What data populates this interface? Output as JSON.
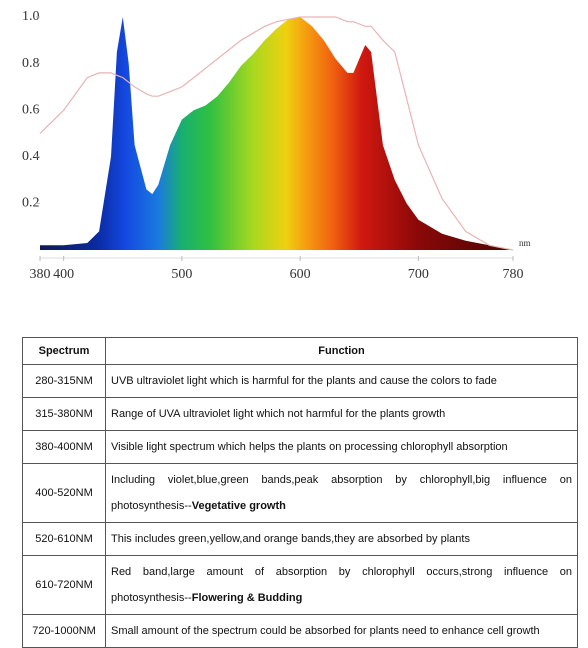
{
  "chart_data": {
    "type": "area",
    "x_unit": "nm",
    "x": [
      380,
      400,
      420,
      430,
      440,
      445,
      450,
      455,
      460,
      470,
      475,
      480,
      490,
      500,
      510,
      520,
      530,
      540,
      550,
      560,
      570,
      580,
      590,
      600,
      610,
      620,
      630,
      640,
      645,
      650,
      655,
      660,
      665,
      670,
      680,
      690,
      700,
      720,
      740,
      760,
      780
    ],
    "series": [
      {
        "color": "spectrum",
        "values": [
          0.02,
          0.02,
          0.03,
          0.08,
          0.4,
          0.85,
          1.0,
          0.8,
          0.45,
          0.26,
          0.24,
          0.28,
          0.45,
          0.56,
          0.6,
          0.62,
          0.66,
          0.72,
          0.79,
          0.84,
          0.9,
          0.95,
          0.99,
          1.0,
          0.96,
          0.9,
          0.82,
          0.76,
          0.76,
          0.82,
          0.88,
          0.85,
          0.65,
          0.45,
          0.3,
          0.2,
          0.13,
          0.07,
          0.04,
          0.02,
          0
        ]
      },
      {
        "color": "#e8b4b4",
        "values": [
          0.5,
          0.6,
          0.74,
          0.76,
          0.76,
          0.75,
          0.74,
          0.72,
          0.7,
          0.67,
          0.66,
          0.66,
          0.68,
          0.7,
          0.74,
          0.78,
          0.82,
          0.86,
          0.9,
          0.93,
          0.96,
          0.98,
          0.99,
          1.0,
          1.0,
          1.0,
          1.0,
          0.98,
          0.98,
          0.97,
          0.96,
          0.96,
          0.93,
          0.9,
          0.85,
          0.65,
          0.45,
          0.22,
          0.08,
          0.02,
          0
        ]
      }
    ],
    "xlim": [
      380,
      780
    ],
    "ylim": [
      0,
      1
    ],
    "xticks": [
      380,
      400,
      500,
      600,
      700,
      780
    ],
    "yticks": [
      0.2,
      0.4,
      0.6,
      0.8,
      {
        "value": 1,
        "label": "1.0"
      }
    ]
  },
  "table": {
    "header": [
      "Spectrum",
      "Function"
    ],
    "rows": [
      {
        "spectrum": "280-315NM",
        "function": "UVB ultraviolet light which is harmful for the plants and cause the colors to fade"
      },
      {
        "spectrum": "315-380NM",
        "function": "Range of UVA  ultraviolet light which not harmful for the plants growth"
      },
      {
        "spectrum": "380-400NM",
        "function": "Visible light spectrum which helps the plants on processing chlorophyll absorption"
      },
      {
        "spectrum": "400-520NM",
        "function": "Including violet,blue,green bands,peak absorption by chlorophyll,big influence on photosynthesis--",
        "emphasis": "Vegetative growth"
      },
      {
        "spectrum": "520-610NM",
        "function": "This includes green,yellow,and orange bands,they are absorbed by plants"
      },
      {
        "spectrum": "610-720NM",
        "function": "Red band,large amount of absorption by chlorophyll occurs,strong influence on photosynthesis--",
        "emphasis": "Flowering & Budding"
      },
      {
        "spectrum": "720-1000NM",
        "function": "Small amount of the spectrum could be absorbed for plants need to enhance cell growth"
      }
    ]
  }
}
